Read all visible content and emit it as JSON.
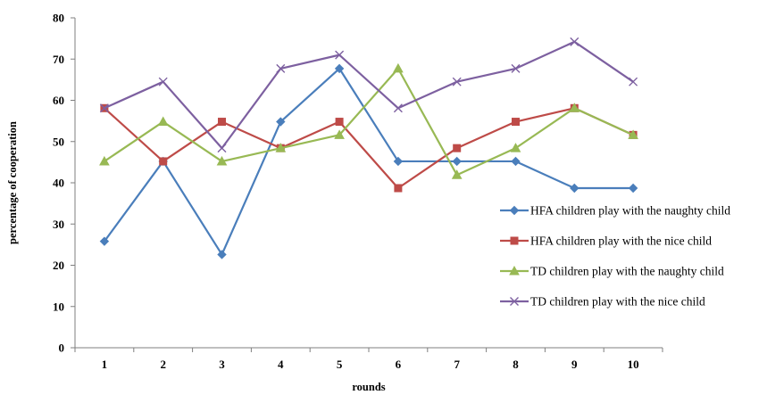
{
  "chart_data": {
    "type": "line",
    "title": "",
    "xlabel": "rounds",
    "ylabel": "percentage of cooperation",
    "categories": [
      "1",
      "2",
      "3",
      "4",
      "5",
      "6",
      "7",
      "8",
      "9",
      "10"
    ],
    "ylim": [
      0,
      80
    ],
    "yticks": [
      "0",
      "10",
      "20",
      "30",
      "40",
      "50",
      "60",
      "70",
      "80"
    ],
    "grid": false,
    "legend_position": "right",
    "series": [
      {
        "name": "HFA children play with the naughty child",
        "color": "#4a7ebb",
        "marker": "diamond",
        "values": [
          25.8,
          45.2,
          22.6,
          54.8,
          67.7,
          45.2,
          45.2,
          45.2,
          38.7,
          38.7
        ]
      },
      {
        "name": "HFA children play with the nice child",
        "color": "#be4b48",
        "marker": "square",
        "values": [
          58.1,
          45.2,
          54.8,
          48.4,
          54.8,
          38.7,
          48.4,
          54.8,
          58.1,
          51.6
        ]
      },
      {
        "name": "TD children play with the naughty child",
        "color": "#98b954",
        "marker": "triangle",
        "values": [
          45.2,
          54.8,
          45.2,
          48.4,
          51.6,
          67.7,
          41.9,
          48.4,
          58.1,
          51.6
        ]
      },
      {
        "name": "TD children play with the nice child",
        "color": "#7d60a0",
        "marker": "x",
        "values": [
          58.1,
          64.5,
          48.4,
          67.7,
          71.0,
          58.1,
          64.5,
          67.7,
          74.2,
          64.5
        ]
      }
    ]
  }
}
